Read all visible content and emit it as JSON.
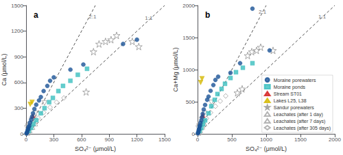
{
  "chart_data": [
    {
      "type": "scatter",
      "title": "a",
      "xlabel": "SO₄²⁻ (μmol/L)",
      "ylabel": "Ca (μmol/L)",
      "xlim": [
        0,
        1500
      ],
      "ylim": [
        0,
        1500
      ],
      "xticks": [
        0,
        300,
        600,
        900,
        1200,
        1500
      ],
      "yticks": [
        0,
        300,
        600,
        900,
        1200,
        1500
      ],
      "grid": false,
      "legend": false,
      "annotations": [
        {
          "text": "2:1",
          "x": 670,
          "y": 1370
        },
        {
          "text": "1:1",
          "x": 1280,
          "y": 1350
        }
      ],
      "series": [
        {
          "type": "line",
          "line_style": "dashed",
          "color": "#555555",
          "x": [
            0,
            750
          ],
          "values": [
            0,
            1500
          ]
        },
        {
          "type": "line",
          "line_style": "dashed",
          "color": "#555555",
          "x": [
            0,
            1500
          ],
          "values": [
            0,
            1500
          ]
        },
        {
          "type": "scatter",
          "name": "Moraine porewaters",
          "color": "#1a5296",
          "marker": "circle",
          "x": [
            5,
            8,
            12,
            18,
            22,
            28,
            35,
            42,
            55,
            65,
            75,
            90,
            110,
            140,
            160,
            190,
            230,
            260,
            300,
            480,
            620,
            1050,
            1200
          ],
          "values": [
            5,
            10,
            25,
            45,
            55,
            80,
            95,
            130,
            165,
            200,
            240,
            290,
            340,
            390,
            430,
            500,
            560,
            620,
            660,
            750,
            810,
            1050,
            1100
          ]
        },
        {
          "type": "scatter",
          "name": "Moraine ponds",
          "color": "#3bbfbf",
          "marker": "square",
          "x": [
            30,
            55,
            80,
            110,
            160,
            200,
            250,
            290,
            350,
            400,
            480,
            560,
            660
          ],
          "values": [
            35,
            70,
            115,
            160,
            240,
            300,
            370,
            420,
            500,
            560,
            620,
            690,
            760
          ]
        },
        {
          "type": "scatter",
          "name": "Stream ST01",
          "color": "#d42020",
          "marker": "triangle_up",
          "x": [
            75
          ],
          "values": [
            210
          ]
        },
        {
          "type": "scatter",
          "name": "Lakes L25, L38",
          "color": "#d4b800",
          "marker": "triangle_down",
          "x": [
            45,
            65
          ],
          "values": [
            345,
            370
          ]
        },
        {
          "type": "scatter",
          "name": "Sandur porewaters",
          "color": "#909090",
          "marker": "open_star",
          "x": [
            650,
            730,
            790,
            860,
            920,
            980,
            1150,
            1220
          ],
          "values": [
            490,
            960,
            1050,
            1080,
            1100,
            1150,
            1080,
            1020
          ]
        },
        {
          "type": "scatter",
          "name": "Leachates (after 1 day)",
          "color": "#a0a0a0",
          "marker": "open_triangle_up",
          "x": [
            15,
            25,
            40,
            70,
            100
          ],
          "values": [
            10,
            20,
            40,
            80,
            120
          ]
        },
        {
          "type": "scatter",
          "name": "Leachates (after 7 days)",
          "color": "#a0a0a0",
          "marker": "open_triangle_down",
          "x": [
            10,
            20,
            35,
            60,
            100,
            200
          ],
          "values": [
            70,
            90,
            110,
            160,
            240,
            360
          ]
        },
        {
          "type": "scatter",
          "name": "Leachates (after 305 days)",
          "color": "#a0a0a0",
          "marker": "open_diamond",
          "x": [
            40,
            80,
            130,
            190,
            260,
            330,
            410
          ],
          "values": [
            60,
            120,
            185,
            250,
            310,
            370,
            420
          ]
        }
      ]
    },
    {
      "type": "scatter",
      "title": "b",
      "xlabel": "SO₄²⁻ (μmol/L)",
      "ylabel": "Ca+Mg (μmol/L)",
      "xlim": [
        0,
        2000
      ],
      "ylim": [
        0,
        2000
      ],
      "xticks": [
        0,
        500,
        1000,
        1500,
        2000
      ],
      "yticks": [
        0,
        500,
        1000,
        1500,
        2000
      ],
      "grid": false,
      "legend": "lower right",
      "annotations": [
        {
          "text": "2:1",
          "x": 880,
          "y": 1900
        },
        {
          "text": "1:1",
          "x": 1750,
          "y": 1820
        }
      ],
      "series": [
        {
          "type": "line",
          "line_style": "dashed",
          "color": "#555555",
          "x": [
            0,
            1000
          ],
          "values": [
            0,
            2000
          ]
        },
        {
          "type": "line",
          "line_style": "dashed",
          "color": "#555555",
          "x": [
            0,
            2000
          ],
          "values": [
            0,
            2000
          ]
        },
        {
          "type": "scatter",
          "name": "Moraine porewaters",
          "color": "#1a5296",
          "marker": "circle",
          "x": [
            5,
            8,
            12,
            18,
            22,
            28,
            35,
            42,
            55,
            65,
            75,
            90,
            110,
            140,
            160,
            190,
            230,
            260,
            300,
            480,
            620,
            800,
            1050
          ],
          "values": [
            8,
            15,
            35,
            60,
            75,
            110,
            130,
            170,
            210,
            260,
            310,
            380,
            450,
            530,
            580,
            670,
            760,
            840,
            890,
            950,
            1100,
            1950,
            1300
          ]
        },
        {
          "type": "scatter",
          "name": "Moraine ponds",
          "color": "#3bbfbf",
          "marker": "square",
          "x": [
            30,
            55,
            80,
            110,
            160,
            200,
            250,
            290,
            350,
            400,
            480,
            560,
            660,
            800
          ],
          "values": [
            45,
            90,
            150,
            210,
            320,
            430,
            530,
            620,
            700,
            780,
            870,
            960,
            1030,
            1100
          ]
        },
        {
          "type": "scatter",
          "name": "Stream ST01",
          "color": "#d42020",
          "marker": "triangle_up",
          "x": [
            75
          ],
          "values": [
            290
          ]
        },
        {
          "type": "scatter",
          "name": "Lakes L25, L38",
          "color": "#d4b800",
          "marker": "triangle_down",
          "x": [
            45,
            65
          ],
          "values": [
            800,
            860
          ]
        },
        {
          "type": "scatter",
          "name": "Sandur porewaters",
          "color": "#909090",
          "marker": "open_star",
          "x": [
            580,
            650,
            730,
            790,
            860,
            920,
            1100
          ],
          "values": [
            640,
            700,
            1220,
            1280,
            1300,
            1350,
            1300
          ]
        },
        {
          "type": "scatter",
          "name": "Leachates (after 1 day)",
          "color": "#a0a0a0",
          "marker": "open_triangle_up",
          "x": [
            15,
            25,
            40,
            70,
            100
          ],
          "values": [
            15,
            30,
            55,
            110,
            160
          ]
        },
        {
          "type": "scatter",
          "name": "Leachates (after 7 days)",
          "color": "#a0a0a0",
          "marker": "open_triangle_down",
          "x": [
            10,
            20,
            35,
            60,
            100,
            200
          ],
          "values": [
            90,
            120,
            150,
            220,
            320,
            490
          ]
        },
        {
          "type": "scatter",
          "name": "Leachates (after 305 days)",
          "color": "#a0a0a0",
          "marker": "open_diamond",
          "x": [
            40,
            80,
            130,
            190,
            260,
            330,
            410
          ],
          "values": [
            80,
            160,
            240,
            330,
            430,
            510,
            590
          ]
        }
      ]
    }
  ]
}
